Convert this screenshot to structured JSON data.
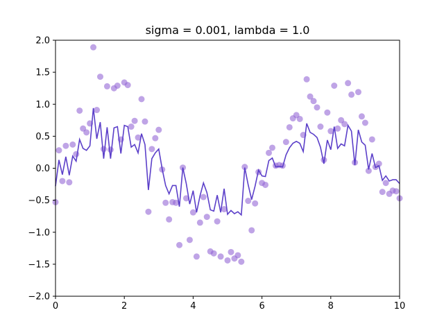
{
  "chart_data": {
    "type": "scatter",
    "title": "sigma = 0.001, lambda = 1.0",
    "xlabel": "",
    "ylabel": "",
    "xlim": [
      0,
      10
    ],
    "ylim": [
      -2.0,
      2.0
    ],
    "grid": false,
    "x_ticks": [
      "0",
      "2",
      "4",
      "6",
      "8",
      "10"
    ],
    "y_ticks": [
      "2.0",
      "1.5",
      "1.0",
      "0.5",
      "0.0",
      "−0.5",
      "−1.0",
      "−1.5",
      "−2.0"
    ],
    "x_tick_values": [
      0,
      2,
      4,
      6,
      8,
      10
    ],
    "y_tick_values": [
      2.0,
      1.5,
      1.0,
      0.5,
      0.0,
      -0.5,
      -1.0,
      -1.5,
      -2.0
    ],
    "colors": {
      "points": "#9467d6",
      "line": "#5b3fc9"
    },
    "series": [
      {
        "kind": "points",
        "x": [
          0.0,
          0.1,
          0.2,
          0.3,
          0.4,
          0.5,
          0.6,
          0.7,
          0.8,
          0.9,
          1.0,
          1.1,
          1.2,
          1.3,
          1.4,
          1.5,
          1.6,
          1.7,
          1.8,
          1.9,
          2.0,
          2.1,
          2.2,
          2.3,
          2.4,
          2.5,
          2.6,
          2.7,
          2.8,
          2.9,
          3.0,
          3.1,
          3.2,
          3.3,
          3.4,
          3.5,
          3.6,
          3.7,
          3.8,
          3.9,
          4.0,
          4.1,
          4.2,
          4.3,
          4.4,
          4.5,
          4.6,
          4.7,
          4.8,
          4.9,
          5.0,
          5.1,
          5.2,
          5.3,
          5.4,
          5.5,
          5.6,
          5.7,
          5.8,
          5.9,
          6.0,
          6.1,
          6.2,
          6.3,
          6.4,
          6.5,
          6.6,
          6.7,
          6.8,
          6.9,
          7.0,
          7.1,
          7.2,
          7.3,
          7.4,
          7.5,
          7.6,
          7.7,
          7.8,
          7.9,
          8.0,
          8.1,
          8.2,
          8.3,
          8.4,
          8.5,
          8.6,
          8.7,
          8.8,
          8.9,
          9.0,
          9.1,
          9.2,
          9.3,
          9.4,
          9.5,
          9.6,
          9.7,
          9.8,
          9.9,
          10.0
        ],
        "y": [
          -0.53,
          0.28,
          -0.2,
          0.35,
          -0.22,
          0.37,
          0.22,
          0.9,
          0.62,
          0.56,
          0.7,
          1.89,
          0.91,
          1.43,
          0.3,
          1.28,
          0.29,
          1.25,
          1.29,
          0.45,
          1.34,
          1.3,
          0.65,
          0.74,
          0.48,
          1.08,
          0.73,
          -0.68,
          0.3,
          0.47,
          0.6,
          -0.02,
          -0.54,
          -0.8,
          -0.53,
          -0.54,
          -1.2,
          0.01,
          -0.47,
          -1.12,
          -0.69,
          -1.38,
          -0.85,
          -0.45,
          -0.76,
          -1.3,
          -1.33,
          -0.83,
          -1.38,
          -0.64,
          -1.44,
          -1.31,
          -1.41,
          -1.36,
          -1.46,
          0.02,
          -0.51,
          -0.97,
          -0.55,
          -0.06,
          -0.23,
          -0.26,
          0.24,
          0.32,
          0.04,
          0.05,
          0.04,
          0.41,
          0.64,
          0.78,
          0.83,
          0.77,
          0.52,
          1.39,
          1.12,
          1.05,
          0.95,
          0.65,
          0.13,
          0.87,
          0.58,
          1.29,
          0.62,
          0.75,
          0.69,
          1.33,
          1.15,
          0.09,
          1.19,
          0.81,
          0.71,
          -0.04,
          0.45,
          0.02,
          0.07,
          -0.37,
          -0.23,
          -0.4,
          -0.35,
          -0.36,
          -0.47
        ]
      },
      {
        "kind": "line",
        "x": [
          0.0,
          0.1,
          0.2,
          0.3,
          0.4,
          0.5,
          0.6,
          0.7,
          0.8,
          0.9,
          1.0,
          1.1,
          1.2,
          1.3,
          1.4,
          1.5,
          1.6,
          1.7,
          1.8,
          1.9,
          2.0,
          2.1,
          2.2,
          2.3,
          2.4,
          2.5,
          2.6,
          2.7,
          2.8,
          2.9,
          3.0,
          3.1,
          3.2,
          3.3,
          3.4,
          3.5,
          3.6,
          3.7,
          3.8,
          3.9,
          4.0,
          4.1,
          4.2,
          4.3,
          4.4,
          4.5,
          4.6,
          4.7,
          4.8,
          4.9,
          5.0,
          5.1,
          5.2,
          5.3,
          5.4,
          5.5,
          5.6,
          5.7,
          5.8,
          5.9,
          6.0,
          6.1,
          6.2,
          6.3,
          6.4,
          6.5,
          6.6,
          6.7,
          6.8,
          6.9,
          7.0,
          7.1,
          7.2,
          7.3,
          7.4,
          7.5,
          7.6,
          7.7,
          7.8,
          7.9,
          8.0,
          8.1,
          8.2,
          8.3,
          8.4,
          8.5,
          8.6,
          8.7,
          8.8,
          8.9,
          9.0,
          9.1,
          9.2,
          9.3,
          9.4,
          9.5,
          9.6,
          9.7,
          9.8,
          9.9,
          10.0
        ],
        "y": [
          -0.28,
          0.13,
          -0.1,
          0.18,
          -0.11,
          0.19,
          0.11,
          0.45,
          0.31,
          0.28,
          0.35,
          0.94,
          0.46,
          0.72,
          0.15,
          0.64,
          0.15,
          0.63,
          0.65,
          0.23,
          0.67,
          0.65,
          0.33,
          0.37,
          0.24,
          0.54,
          0.37,
          -0.34,
          0.15,
          0.24,
          0.3,
          -0.01,
          -0.27,
          -0.4,
          -0.27,
          -0.27,
          -0.6,
          0.01,
          -0.24,
          -0.56,
          -0.35,
          -0.69,
          -0.43,
          -0.23,
          -0.38,
          -0.65,
          -0.67,
          -0.42,
          -0.69,
          -0.32,
          -0.72,
          -0.66,
          -0.71,
          -0.68,
          -0.73,
          0.01,
          -0.26,
          -0.49,
          -0.28,
          -0.03,
          -0.12,
          -0.13,
          0.12,
          0.16,
          0.02,
          0.03,
          0.02,
          0.21,
          0.32,
          0.39,
          0.42,
          0.39,
          0.26,
          0.7,
          0.56,
          0.53,
          0.48,
          0.33,
          0.07,
          0.44,
          0.29,
          0.65,
          0.31,
          0.38,
          0.35,
          0.67,
          0.58,
          0.05,
          0.6,
          0.41,
          0.36,
          -0.02,
          0.23,
          0.01,
          0.04,
          -0.19,
          -0.12,
          -0.2,
          -0.18,
          -0.18,
          -0.24
        ]
      }
    ]
  }
}
